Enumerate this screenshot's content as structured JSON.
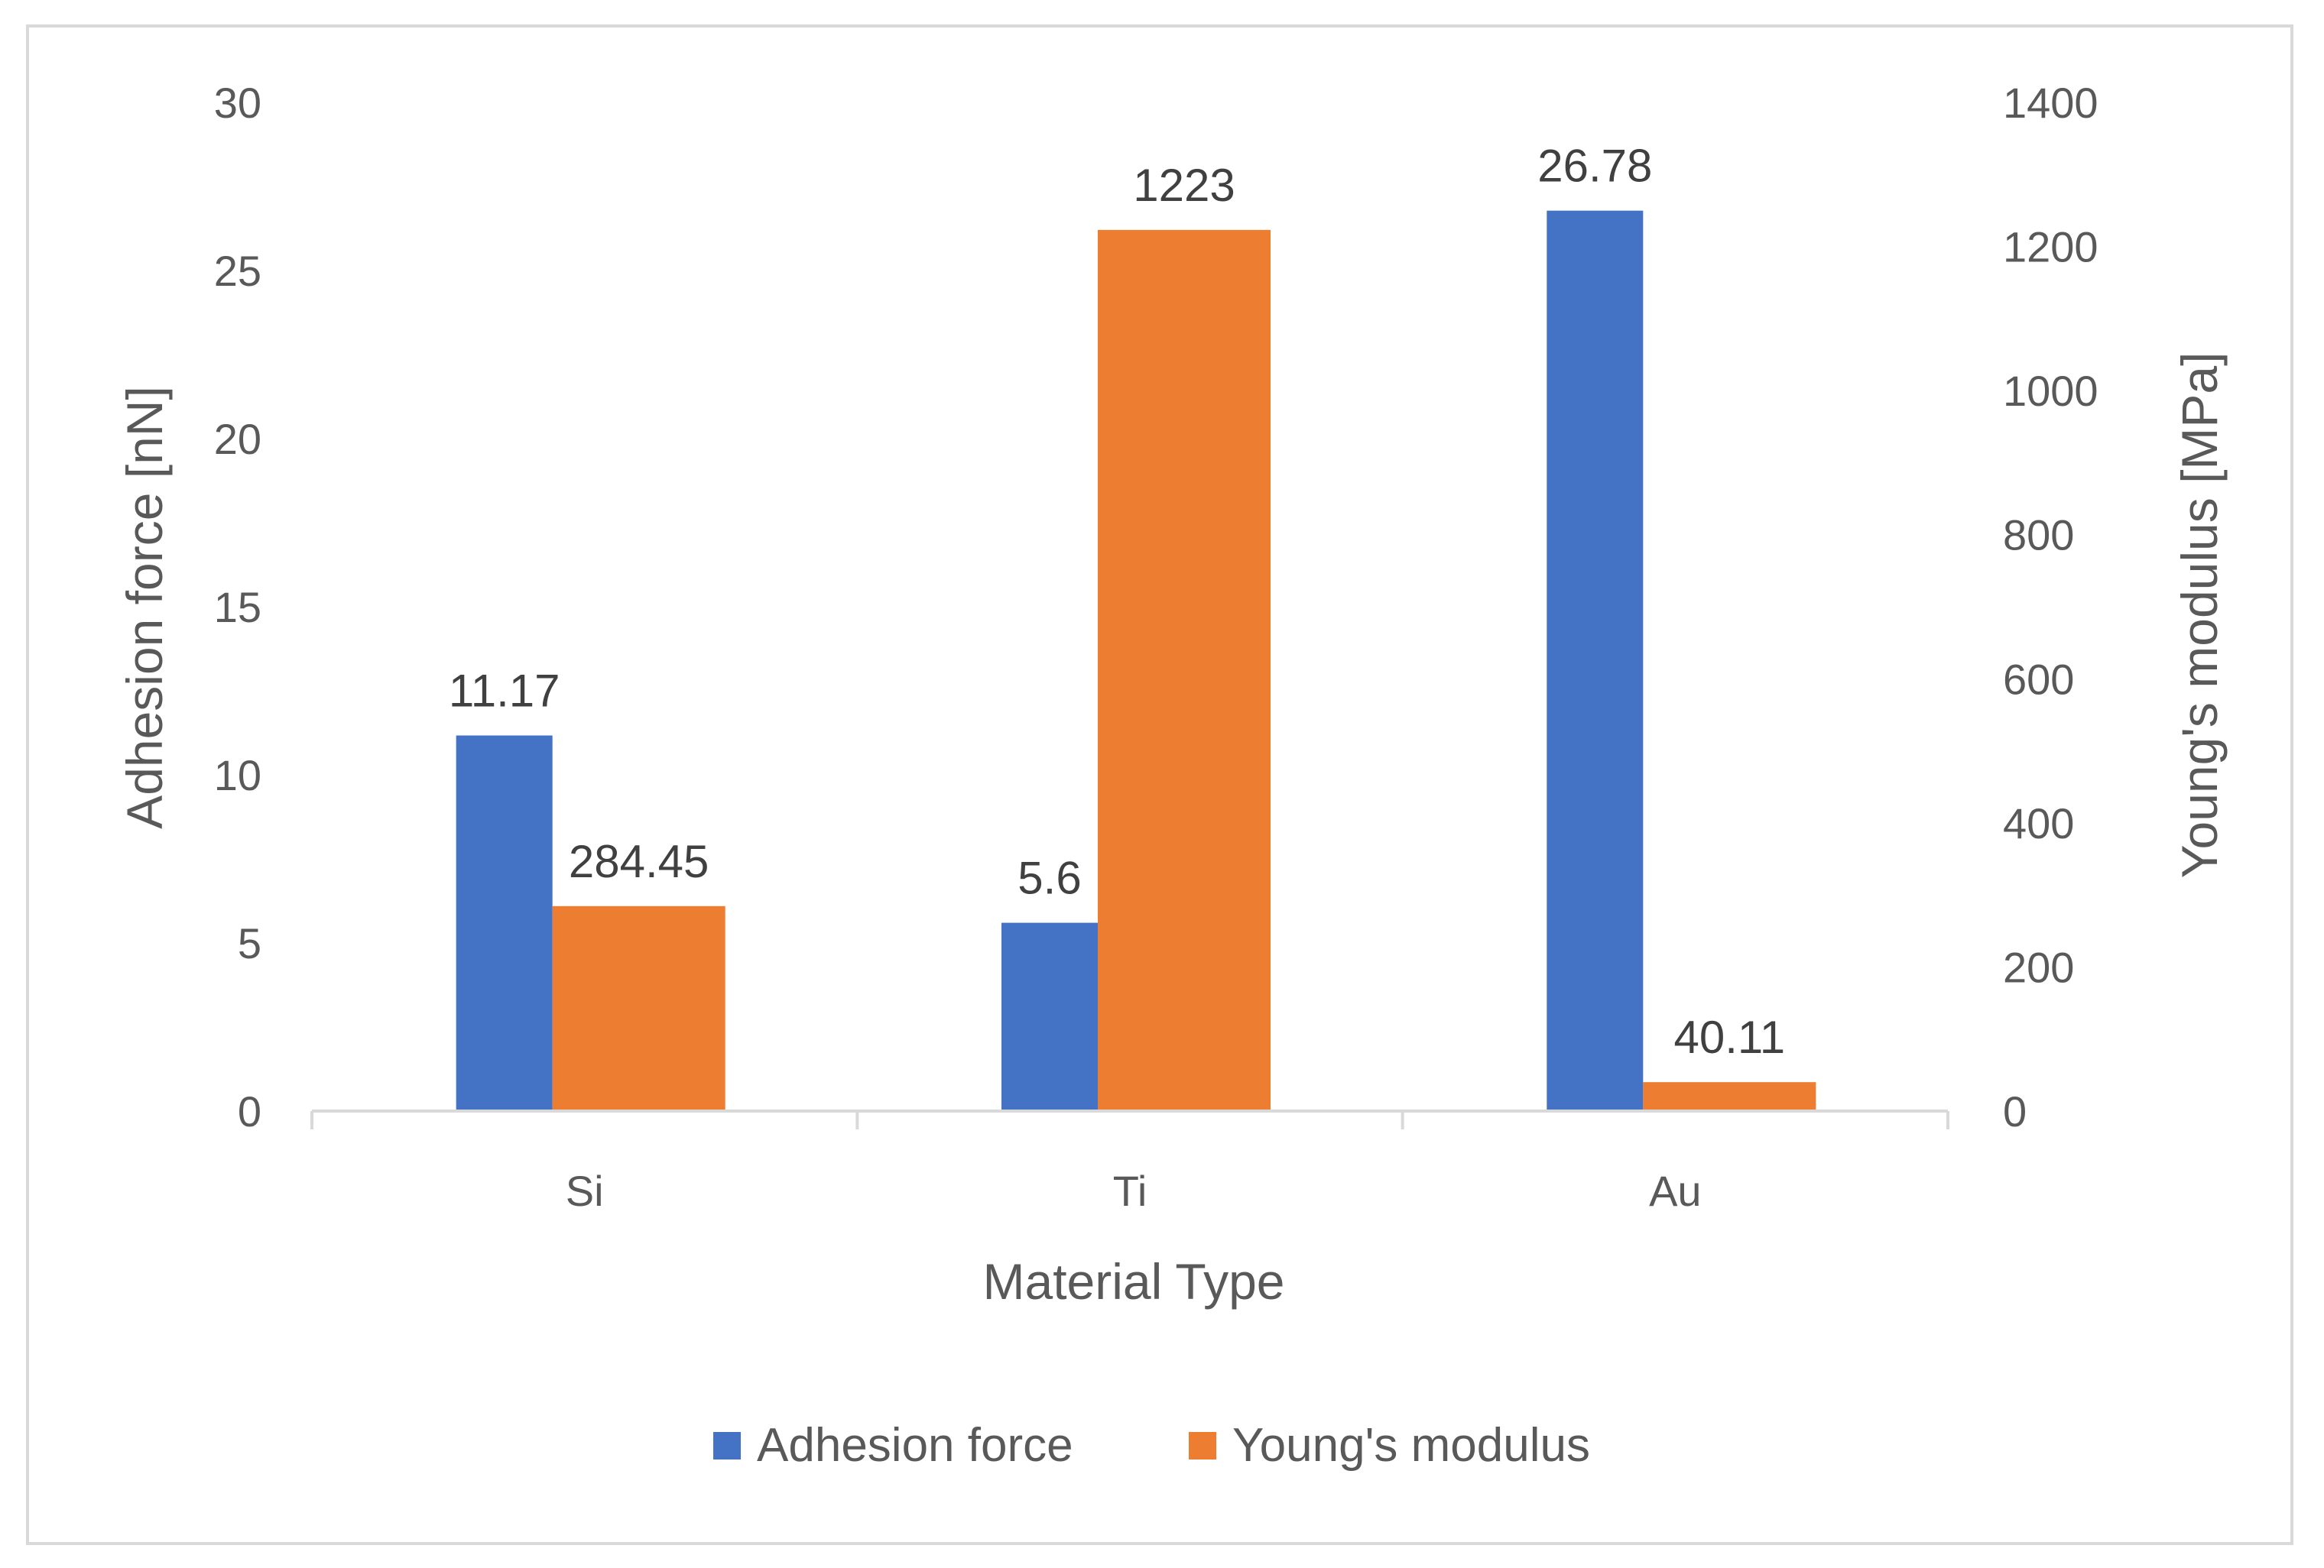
{
  "chart_data": {
    "type": "bar",
    "categories": [
      "Si",
      "Ti",
      "Au"
    ],
    "series": [
      {
        "name": "Adhesion force",
        "axis": "left",
        "color": "#4472c4",
        "values": [
          11.17,
          5.6,
          26.78
        ],
        "labels": [
          "11.17",
          "5.6",
          "26.78"
        ]
      },
      {
        "name": "Young's modulus",
        "axis": "right",
        "color": "#ed7d31",
        "values": [
          284.45,
          1223,
          40.11
        ],
        "labels": [
          "284.45",
          "1223",
          "40.11"
        ]
      }
    ],
    "xlabel": "Material Type",
    "ylabel_left": "Adhesion force [nN]",
    "ylabel_right": "Young's modulus [MPa]",
    "ylim_left": [
      0,
      30
    ],
    "ylim_right": [
      0,
      1400
    ],
    "yticks_left": [
      "0",
      "5",
      "10",
      "15",
      "20",
      "25",
      "30"
    ],
    "yticks_right": [
      "0",
      "200",
      "400",
      "600",
      "800",
      "1000",
      "1200",
      "1400"
    ],
    "legend_position": "bottom",
    "grid": false,
    "axis_color": "#d9d9d9"
  }
}
